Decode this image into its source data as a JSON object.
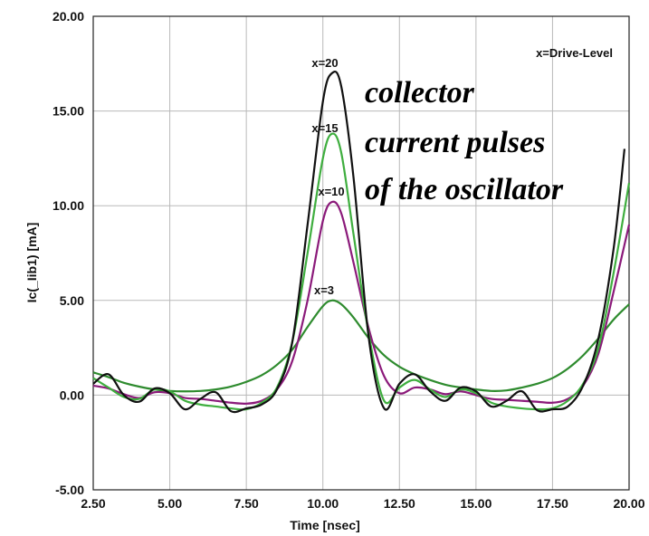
{
  "chart_data": {
    "type": "line",
    "title": "",
    "xlabel": "Time [nsec]",
    "ylabel": "Ic(_Iib1) [mA]",
    "xlim": [
      2.5,
      20.0
    ],
    "ylim": [
      -5.0,
      20.0
    ],
    "grid": true,
    "x_ticks": [
      "2.50",
      "5.00",
      "7.50",
      "10.00",
      "12.50",
      "15.00",
      "17.50",
      "20.00"
    ],
    "y_ticks": [
      "-5.00",
      "0.00",
      "5.00",
      "10.00",
      "15.00",
      "20.00"
    ],
    "legend_note": "x=Drive-Level",
    "annotation": [
      "collector",
      "current pulses",
      "of the oscillator"
    ],
    "series": [
      {
        "name": "x=3",
        "color": "#2e8b2e",
        "points": [
          [
            2.5,
            1.2
          ],
          [
            3.0,
            0.95
          ],
          [
            3.5,
            0.65
          ],
          [
            4.0,
            0.45
          ],
          [
            4.5,
            0.3
          ],
          [
            5.0,
            0.22
          ],
          [
            5.5,
            0.2
          ],
          [
            6.0,
            0.22
          ],
          [
            6.5,
            0.3
          ],
          [
            7.0,
            0.45
          ],
          [
            7.5,
            0.7
          ],
          [
            8.0,
            1.05
          ],
          [
            8.5,
            1.6
          ],
          [
            9.0,
            2.4
          ],
          [
            9.5,
            3.6
          ],
          [
            10.0,
            4.7
          ],
          [
            10.3,
            5.0
          ],
          [
            10.6,
            4.8
          ],
          [
            11.0,
            4.1
          ],
          [
            11.5,
            3.0
          ],
          [
            12.0,
            2.1
          ],
          [
            12.5,
            1.5
          ],
          [
            13.0,
            1.1
          ],
          [
            13.5,
            0.8
          ],
          [
            14.0,
            0.55
          ],
          [
            14.5,
            0.4
          ],
          [
            15.0,
            0.3
          ],
          [
            15.5,
            0.22
          ],
          [
            16.0,
            0.25
          ],
          [
            16.5,
            0.4
          ],
          [
            17.0,
            0.6
          ],
          [
            17.5,
            0.9
          ],
          [
            18.0,
            1.4
          ],
          [
            18.5,
            2.1
          ],
          [
            19.0,
            3.0
          ],
          [
            19.5,
            4.0
          ],
          [
            20.0,
            4.8
          ]
        ]
      },
      {
        "name": "x=10",
        "color": "#8b1a7a",
        "points": [
          [
            2.5,
            0.5
          ],
          [
            3.0,
            0.35
          ],
          [
            3.5,
            0.05
          ],
          [
            4.0,
            -0.15
          ],
          [
            4.5,
            0.15
          ],
          [
            5.0,
            0.1
          ],
          [
            5.5,
            -0.15
          ],
          [
            6.0,
            -0.2
          ],
          [
            6.5,
            -0.3
          ],
          [
            7.0,
            -0.4
          ],
          [
            7.5,
            -0.45
          ],
          [
            8.0,
            -0.3
          ],
          [
            8.5,
            0.3
          ],
          [
            9.0,
            1.8
          ],
          [
            9.5,
            5.0
          ],
          [
            10.0,
            9.2
          ],
          [
            10.3,
            10.2
          ],
          [
            10.6,
            9.6
          ],
          [
            11.0,
            7.0
          ],
          [
            11.5,
            3.5
          ],
          [
            12.0,
            1.0
          ],
          [
            12.5,
            0.1
          ],
          [
            13.0,
            0.4
          ],
          [
            13.5,
            0.3
          ],
          [
            14.0,
            0.05
          ],
          [
            14.5,
            0.2
          ],
          [
            15.0,
            0.0
          ],
          [
            15.5,
            -0.2
          ],
          [
            16.0,
            -0.25
          ],
          [
            16.5,
            -0.3
          ],
          [
            17.0,
            -0.35
          ],
          [
            17.5,
            -0.4
          ],
          [
            18.0,
            -0.2
          ],
          [
            18.5,
            0.5
          ],
          [
            19.0,
            2.2
          ],
          [
            19.5,
            5.5
          ],
          [
            20.0,
            9.0
          ]
        ]
      },
      {
        "name": "x=15",
        "color": "#3fae3f",
        "points": [
          [
            2.5,
            0.9
          ],
          [
            3.0,
            0.4
          ],
          [
            3.5,
            -0.1
          ],
          [
            4.0,
            -0.2
          ],
          [
            4.5,
            0.3
          ],
          [
            5.0,
            0.2
          ],
          [
            5.5,
            -0.3
          ],
          [
            6.0,
            -0.5
          ],
          [
            6.5,
            -0.6
          ],
          [
            7.0,
            -0.7
          ],
          [
            7.5,
            -0.75
          ],
          [
            8.0,
            -0.4
          ],
          [
            8.5,
            0.4
          ],
          [
            9.0,
            2.8
          ],
          [
            9.5,
            7.5
          ],
          [
            10.0,
            12.5
          ],
          [
            10.3,
            13.8
          ],
          [
            10.6,
            12.8
          ],
          [
            11.0,
            8.5
          ],
          [
            11.5,
            3.2
          ],
          [
            12.0,
            -0.3
          ],
          [
            12.5,
            0.4
          ],
          [
            13.0,
            0.8
          ],
          [
            13.5,
            0.3
          ],
          [
            14.0,
            -0.1
          ],
          [
            14.5,
            0.3
          ],
          [
            15.0,
            0.1
          ],
          [
            15.5,
            -0.4
          ],
          [
            16.0,
            -0.6
          ],
          [
            16.5,
            -0.7
          ],
          [
            17.0,
            -0.75
          ],
          [
            17.5,
            -0.7
          ],
          [
            18.0,
            -0.3
          ],
          [
            18.5,
            0.6
          ],
          [
            19.0,
            2.5
          ],
          [
            19.5,
            6.5
          ],
          [
            20.0,
            11.2
          ]
        ]
      },
      {
        "name": "x=20",
        "color": "#111111",
        "points": [
          [
            2.5,
            0.6
          ],
          [
            3.0,
            1.1
          ],
          [
            3.5,
            0.0
          ],
          [
            4.0,
            -0.35
          ],
          [
            4.5,
            0.35
          ],
          [
            5.0,
            0.1
          ],
          [
            5.5,
            -0.75
          ],
          [
            6.0,
            -0.2
          ],
          [
            6.5,
            0.15
          ],
          [
            7.0,
            -0.85
          ],
          [
            7.5,
            -0.7
          ],
          [
            8.0,
            -0.5
          ],
          [
            8.5,
            0.3
          ],
          [
            9.0,
            2.8
          ],
          [
            9.5,
            9.0
          ],
          [
            10.0,
            15.5
          ],
          [
            10.3,
            17.0
          ],
          [
            10.6,
            16.3
          ],
          [
            11.0,
            11.5
          ],
          [
            11.5,
            3.0
          ],
          [
            12.0,
            -0.7
          ],
          [
            12.5,
            0.6
          ],
          [
            13.0,
            1.1
          ],
          [
            13.5,
            0.2
          ],
          [
            14.0,
            -0.3
          ],
          [
            14.5,
            0.4
          ],
          [
            15.0,
            0.2
          ],
          [
            15.5,
            -0.6
          ],
          [
            16.0,
            -0.3
          ],
          [
            16.5,
            0.2
          ],
          [
            17.0,
            -0.8
          ],
          [
            17.5,
            -0.75
          ],
          [
            18.0,
            -0.6
          ],
          [
            18.5,
            0.5
          ],
          [
            19.0,
            3.0
          ],
          [
            19.5,
            7.8
          ],
          [
            19.85,
            13.0
          ]
        ]
      }
    ]
  }
}
